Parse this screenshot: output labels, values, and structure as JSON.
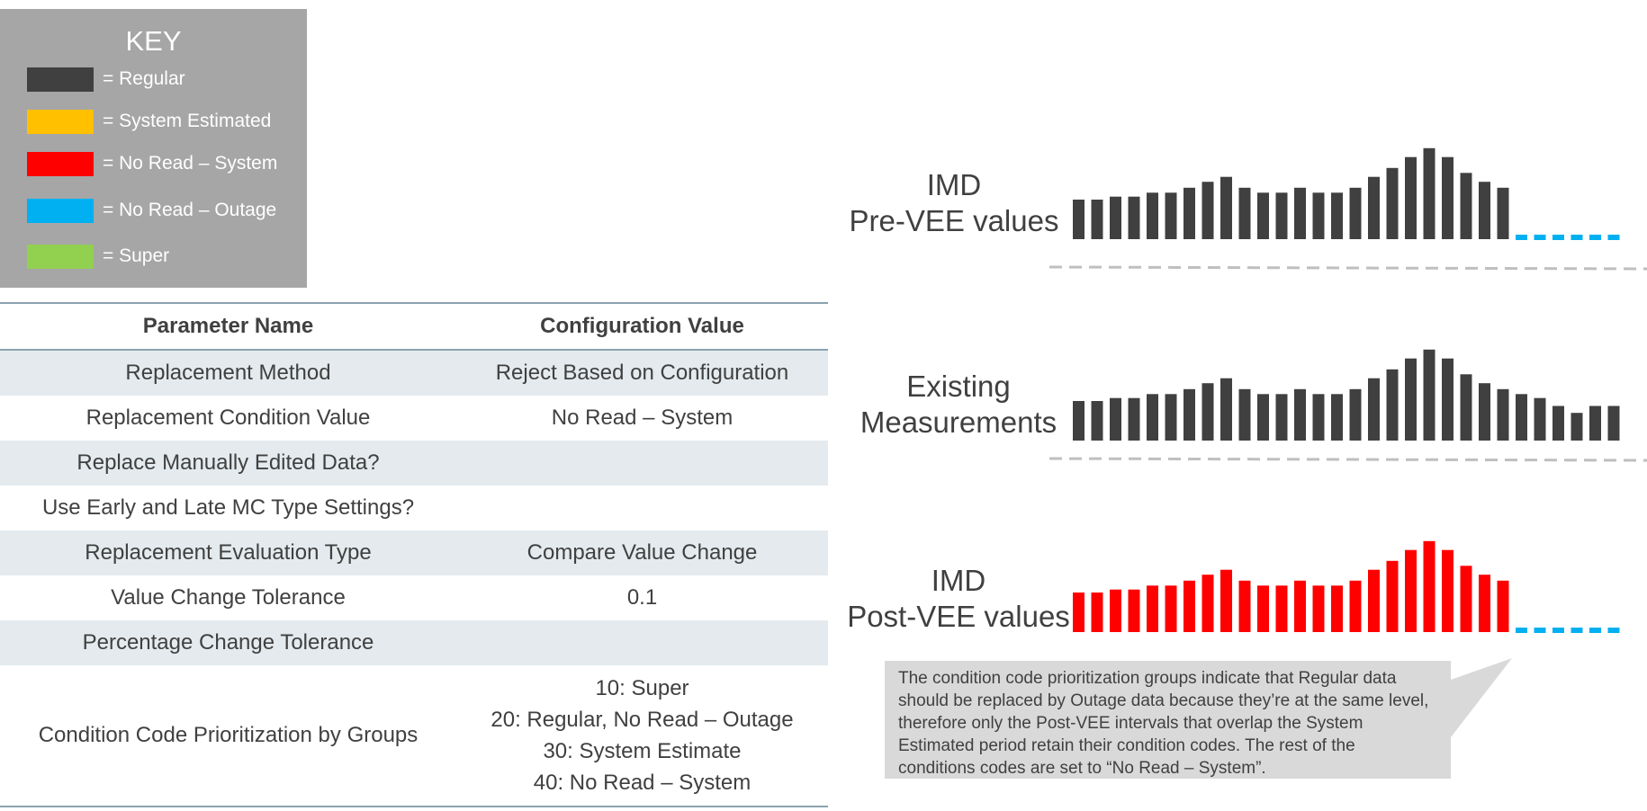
{
  "key": {
    "title": "KEY",
    "items": [
      {
        "label": "= Regular",
        "color": "#404040"
      },
      {
        "label": "= System Estimated",
        "color": "#ffc000"
      },
      {
        "label": "= No Read – System",
        "color": "#ff0000"
      },
      {
        "label": "= No Read – Outage",
        "color": "#00b0f0"
      },
      {
        "label": "= Super",
        "color": "#92d050"
      }
    ]
  },
  "table": {
    "headers": [
      "Parameter Name",
      "Configuration Value"
    ],
    "rows": [
      {
        "name": "Replacement Method",
        "value": "Reject Based on Configuration"
      },
      {
        "name": "Replacement Condition Value",
        "value": "No Read – System"
      },
      {
        "name": "Replace Manually Edited Data?",
        "value": ""
      },
      {
        "name": "Use Early and Late MC Type Settings?",
        "value": ""
      },
      {
        "name": "Replacement Evaluation Type",
        "value": "Compare Value Change"
      },
      {
        "name": "Value Change Tolerance",
        "value": "0.1"
      },
      {
        "name": "Percentage Change Tolerance",
        "value": ""
      },
      {
        "name": "Condition Code Prioritization by Groups",
        "value_lines": [
          "10: Super",
          "20: Regular, No Read – Outage",
          "30: System Estimate",
          "40: No Read – System"
        ]
      }
    ]
  },
  "chart_data": [
    {
      "type": "bar",
      "label_lines": [
        "IMD",
        "Pre-VEE values"
      ],
      "values": [
        40,
        40,
        43,
        43,
        47,
        47,
        52,
        58,
        63,
        52,
        47,
        47,
        52,
        47,
        47,
        52,
        63,
        72,
        83,
        92,
        83,
        67,
        58,
        52
      ],
      "bar_color": "#404040",
      "trailing_dashed_segments": 6,
      "dash_color": "#00b0f0"
    },
    {
      "type": "bar",
      "label_lines": [
        "Existing",
        "Measurements"
      ],
      "values": [
        40,
        40,
        43,
        43,
        47,
        47,
        52,
        58,
        63,
        52,
        47,
        47,
        52,
        47,
        47,
        52,
        63,
        72,
        83,
        92,
        83,
        67,
        58,
        52,
        47,
        43,
        35,
        28,
        35,
        35
      ],
      "bar_color": "#404040",
      "trailing_dashed_segments": 0,
      "dash_color": "#00b0f0"
    },
    {
      "type": "bar",
      "label_lines": [
        "IMD",
        "Post-VEE values"
      ],
      "values": [
        40,
        40,
        43,
        43,
        47,
        47,
        52,
        58,
        63,
        52,
        47,
        47,
        52,
        47,
        47,
        52,
        63,
        72,
        83,
        92,
        83,
        67,
        58,
        52
      ],
      "bar_color": "#ff0000",
      "trailing_dashed_segments": 6,
      "dash_color": "#00b0f0"
    }
  ],
  "callout": {
    "text": "The condition code prioritization groups indicate that Regular data should be replaced by Outage data because they’re at the same level, therefore only the Post-VEE intervals that overlap the System Estimated period retain their condition codes.  The rest of the conditions codes are set to “No Read – System”.",
    "background": "#d9d9d9"
  }
}
